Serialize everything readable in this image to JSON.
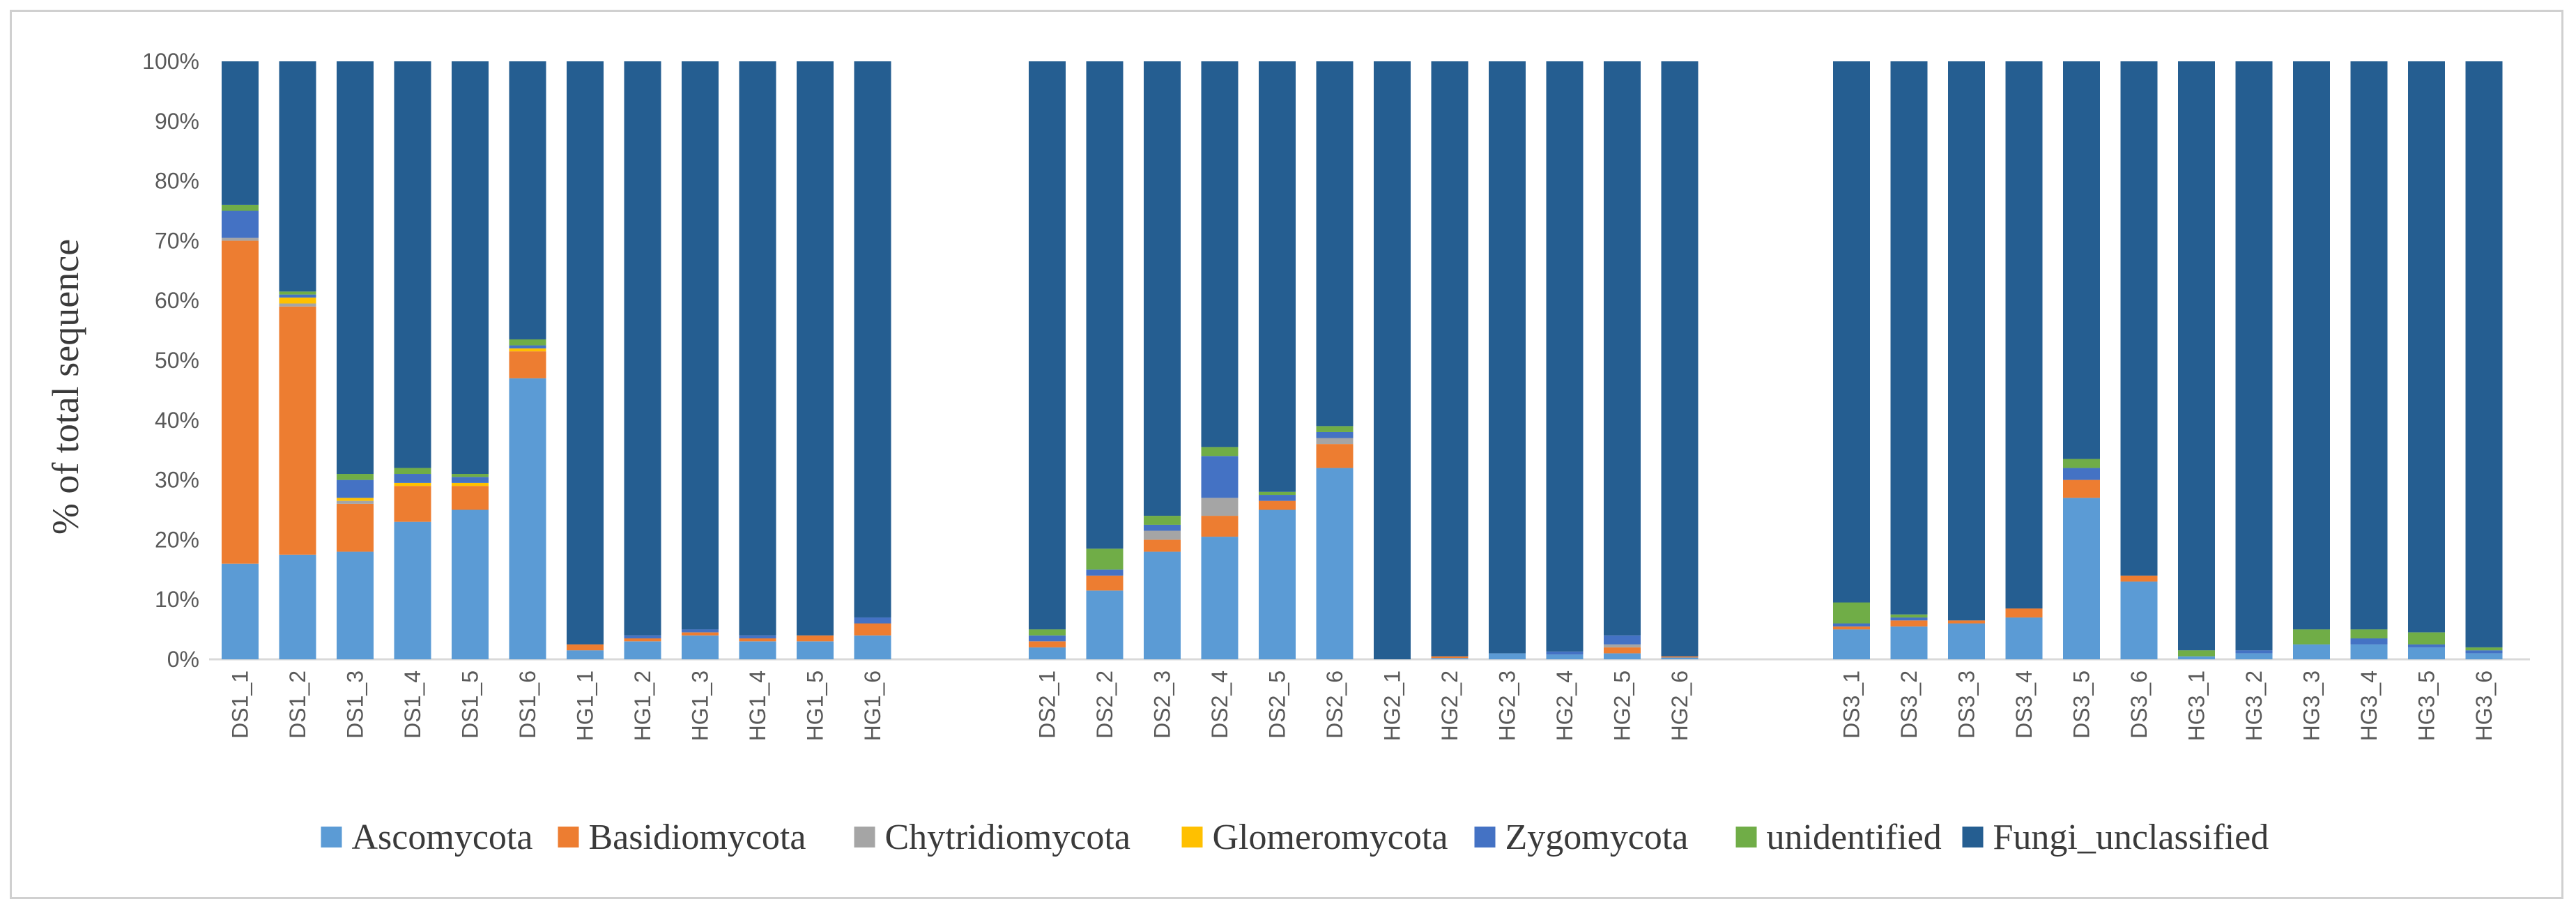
{
  "chart_data": {
    "type": "bar",
    "stacked": true,
    "normalized": true,
    "ylabel": "% of total sequence",
    "xlabel": "",
    "title": "",
    "ylim": [
      0,
      100
    ],
    "yticks": [
      "0%",
      "10%",
      "20%",
      "30%",
      "40%",
      "50%",
      "60%",
      "70%",
      "80%",
      "90%",
      "100%"
    ],
    "grid": false,
    "legend_position": "bottom",
    "groups": [
      [
        "DS1_1",
        "DS1_2",
        "DS1_3",
        "DS1_4",
        "DS1_5",
        "DS1_6",
        "HG1_1",
        "HG1_2",
        "HG1_3",
        "HG1_4",
        "HG1_5",
        "HG1_6"
      ],
      [
        "DS2_1",
        "DS2_2",
        "DS2_3",
        "DS2_4",
        "DS2_5",
        "DS2_6",
        "HG2_1",
        "HG2_2",
        "HG2_3",
        "HG2_4",
        "HG2_5",
        "HG2_6"
      ],
      [
        "DS3_1",
        "DS3_2",
        "DS3_3",
        "DS3_4",
        "DS3_5",
        "DS3_6",
        "HG3_1",
        "HG3_2",
        "HG3_3",
        "HG3_4",
        "HG3_5",
        "HG3_6"
      ]
    ],
    "series": [
      {
        "name": "Ascomycota",
        "color": "#5b9bd5",
        "values": [
          16,
          17.5,
          18,
          23,
          25,
          47,
          1.5,
          3,
          4,
          3,
          3,
          4,
          2,
          11.5,
          18,
          20.5,
          25,
          32,
          0,
          0.2,
          1,
          0.8,
          1,
          0.3,
          5,
          5.5,
          6,
          7,
          27,
          13,
          0.5,
          1,
          2.5,
          2.5,
          2,
          1
        ]
      },
      {
        "name": "Basidiomycota",
        "color": "#ed7d31",
        "values": [
          54,
          41.5,
          8,
          6,
          4,
          4.5,
          1,
          0.5,
          0.5,
          0.5,
          1,
          2,
          1,
          2.5,
          2,
          3.5,
          1.5,
          4,
          0,
          0.3,
          0,
          0,
          1,
          0.2,
          0.5,
          1,
          0.5,
          1.5,
          3,
          1,
          0,
          0,
          0,
          0,
          0,
          0
        ]
      },
      {
        "name": "Chytridiomycota",
        "color": "#a5a5a5",
        "values": [
          0.5,
          0.5,
          0.5,
          0,
          0,
          0,
          0,
          0,
          0,
          0,
          0,
          0,
          0,
          0,
          1.5,
          3,
          0,
          1,
          0,
          0,
          0,
          0,
          0.5,
          0,
          0,
          0,
          0,
          0,
          0,
          0,
          0,
          0,
          0,
          0,
          0,
          0
        ]
      },
      {
        "name": "Glomeromycota",
        "color": "#ffc000",
        "values": [
          0,
          1,
          0.5,
          0.5,
          0.5,
          0.5,
          0,
          0,
          0,
          0,
          0,
          0,
          0,
          0,
          0,
          0,
          0,
          0,
          0,
          0,
          0,
          0,
          0,
          0,
          0,
          0,
          0,
          0,
          0,
          0,
          0,
          0,
          0,
          0,
          0,
          0
        ]
      },
      {
        "name": "Zygomycota",
        "color": "#4472c4",
        "values": [
          4.5,
          0.5,
          3,
          1.5,
          1,
          0.5,
          0,
          0.5,
          0.5,
          0.5,
          0,
          1,
          1,
          1,
          1,
          7,
          1,
          1,
          0,
          0,
          0,
          0.5,
          1.5,
          0,
          0.5,
          0.5,
          0,
          0,
          2,
          0,
          0,
          0.5,
          0,
          1,
          0.5,
          0.5
        ]
      },
      {
        "name": "unidentified",
        "color": "#70ad47",
        "values": [
          1,
          0.5,
          1,
          1,
          0.5,
          1,
          0,
          0,
          0,
          0,
          0,
          0,
          1,
          3.5,
          1.5,
          1.5,
          0.5,
          1,
          0,
          0,
          0,
          0,
          0,
          0,
          3.5,
          0.5,
          0,
          0,
          1.5,
          0,
          1,
          0,
          2.5,
          1.5,
          2,
          0.5
        ]
      },
      {
        "name": "Fungi_unclassified",
        "color": "#255e91",
        "values": [
          24,
          38.5,
          69,
          68,
          69,
          46.5,
          97.5,
          96,
          95,
          96,
          96,
          93,
          95,
          81.5,
          76,
          64.5,
          72,
          61,
          100,
          99.5,
          99,
          98.7,
          96,
          99.5,
          90.5,
          92.5,
          93.5,
          91.5,
          66.5,
          86,
          98.5,
          98.5,
          95,
          95,
          95.5,
          98
        ]
      }
    ]
  }
}
